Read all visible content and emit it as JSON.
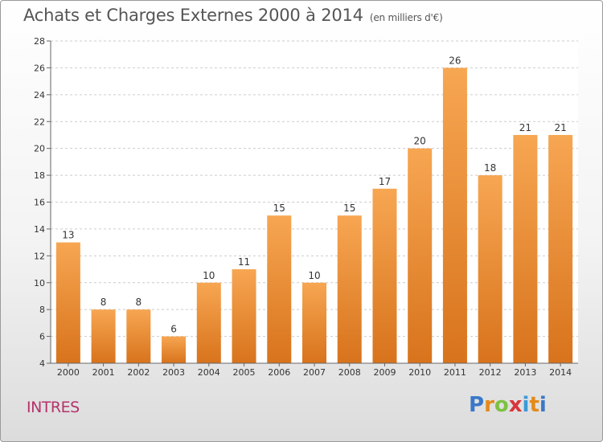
{
  "title": "Achats et Charges Externes 2000 à 2014",
  "subtitle": "(en milliers d'€)",
  "commune": "INTRES",
  "logo": {
    "letters": [
      "P",
      "r",
      "o",
      "x",
      "i",
      "t",
      "i"
    ],
    "colors": [
      "#3a78c8",
      "#e48a1a",
      "#7dc242",
      "#d8353a",
      "#3a9ad8",
      "#e48a1a",
      "#3a78c8"
    ]
  },
  "colors": {
    "bar_top": "#f7a652",
    "bar_bottom": "#d8731c",
    "grid": "#cccccc",
    "axis": "#666666"
  },
  "chart_data": {
    "type": "bar",
    "categories": [
      "2000",
      "2001",
      "2002",
      "2003",
      "2004",
      "2005",
      "2006",
      "2007",
      "2008",
      "2009",
      "2010",
      "2011",
      "2012",
      "2013",
      "2014"
    ],
    "values": [
      13,
      8,
      8,
      6,
      10,
      11,
      15,
      10,
      15,
      17,
      20,
      26,
      18,
      21,
      21
    ],
    "title": "Achats et Charges Externes 2000 à 2014",
    "xlabel": "",
    "ylabel": "",
    "ylim": [
      4,
      28
    ],
    "yticks": [
      4,
      6,
      8,
      10,
      12,
      14,
      16,
      18,
      20,
      22,
      24,
      26,
      28
    ],
    "grid": true,
    "data_labels": true
  }
}
